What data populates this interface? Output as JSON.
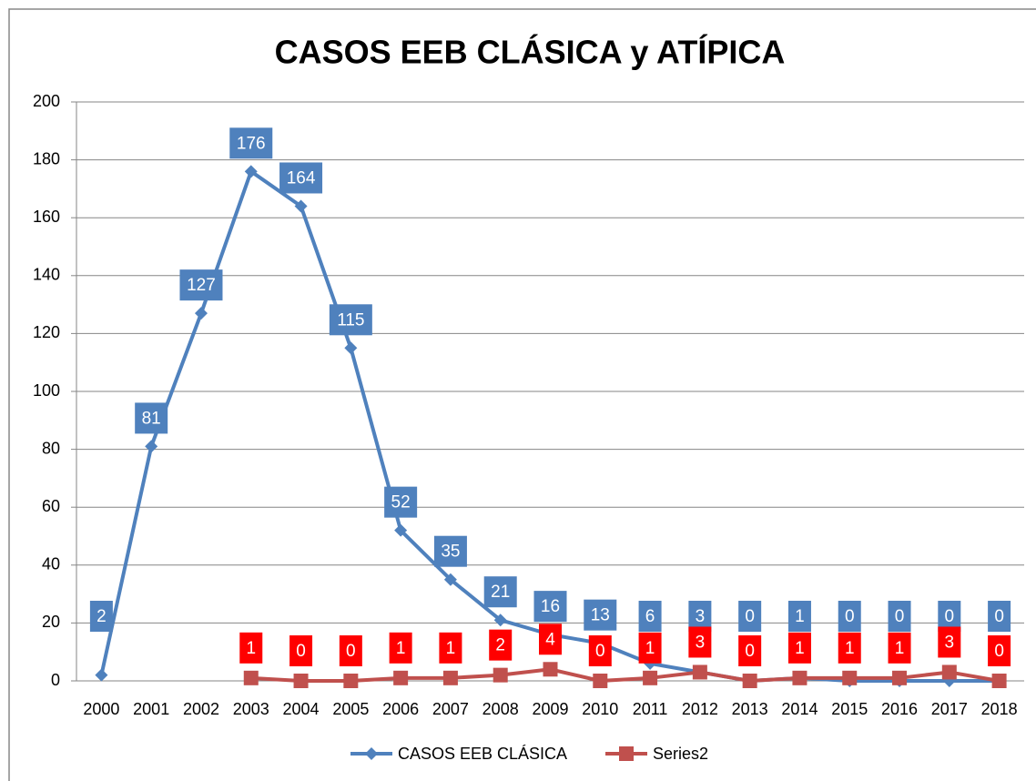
{
  "chart_data": {
    "type": "line",
    "title": "CASOS EEB CLÁSICA y ATÍPICA",
    "categories": [
      "2000",
      "2001",
      "2002",
      "2003",
      "2004",
      "2005",
      "2006",
      "2007",
      "2008",
      "2009",
      "2010",
      "2011",
      "2012",
      "2013",
      "2014",
      "2015",
      "2016",
      "2017",
      "2018"
    ],
    "series": [
      {
        "name": "CASOS EEB CLÁSICA",
        "color": "#4f81bd",
        "label_color": "#4f81bd",
        "marker": "diamond",
        "values": [
          2,
          81,
          127,
          176,
          164,
          115,
          52,
          35,
          21,
          16,
          13,
          6,
          3,
          0,
          1,
          0,
          0,
          0,
          0
        ]
      },
      {
        "name": "Series2",
        "color": "#c0504d",
        "label_color": "#ff0000",
        "marker": "square",
        "values": [
          null,
          null,
          null,
          1,
          0,
          0,
          1,
          1,
          2,
          4,
          0,
          1,
          3,
          0,
          1,
          1,
          1,
          3,
          0
        ]
      }
    ],
    "ylim": [
      0,
      200
    ],
    "yticks": [
      0,
      20,
      40,
      60,
      80,
      100,
      120,
      140,
      160,
      180,
      200
    ],
    "grid": true,
    "legend": "bottom"
  }
}
